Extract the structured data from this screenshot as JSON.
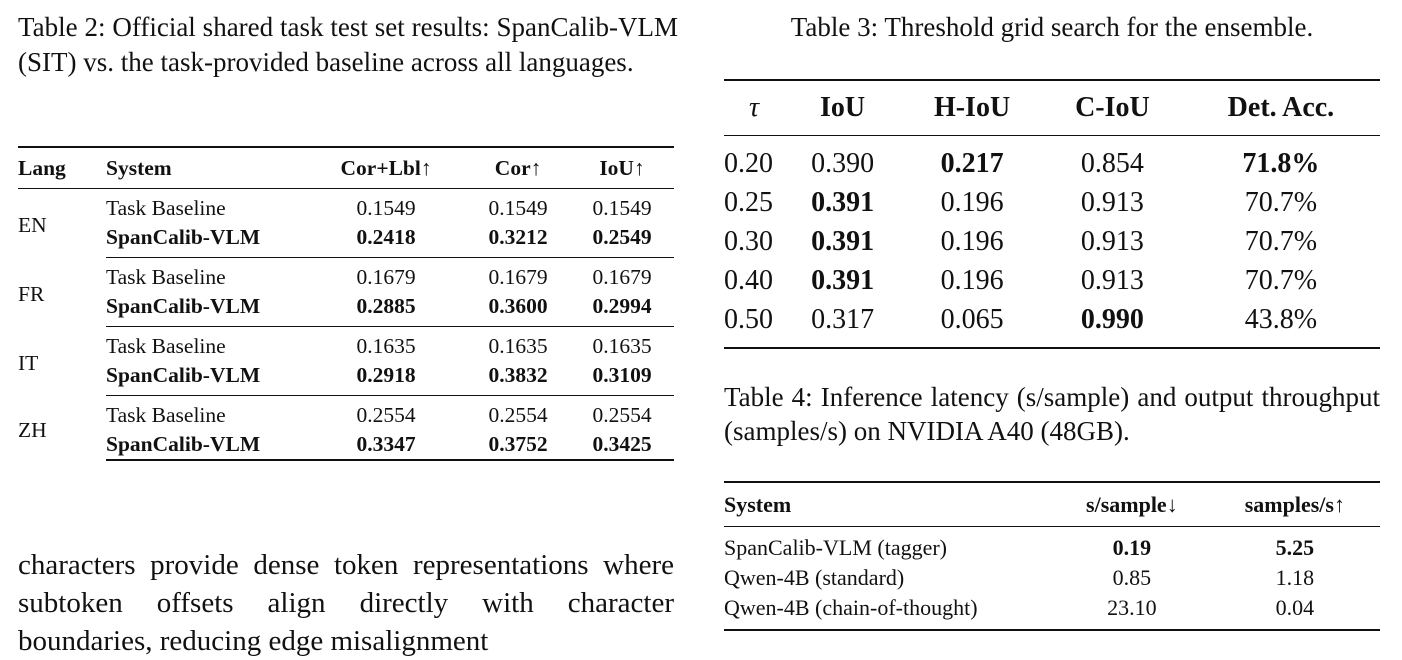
{
  "table2": {
    "caption": "Table 2: Official shared task test set results: SpanCalib-VLM (SIT) vs. the task-provided baseline across all languages.",
    "header": [
      "Lang",
      "System",
      "Cor+Lbl↑",
      "Cor↑",
      "IoU↑"
    ],
    "groups": [
      {
        "lang": "EN",
        "rows": [
          [
            "Task Baseline",
            "0.1549",
            "0.1549",
            "0.1549"
          ],
          [
            "SpanCalib-VLM",
            "0.2418",
            "0.3212",
            "0.2549"
          ]
        ]
      },
      {
        "lang": "FR",
        "rows": [
          [
            "Task Baseline",
            "0.1679",
            "0.1679",
            "0.1679"
          ],
          [
            "SpanCalib-VLM",
            "0.2885",
            "0.3600",
            "0.2994"
          ]
        ]
      },
      {
        "lang": "IT",
        "rows": [
          [
            "Task Baseline",
            "0.1635",
            "0.1635",
            "0.1635"
          ],
          [
            "SpanCalib-VLM",
            "0.2918",
            "0.3832",
            "0.3109"
          ]
        ]
      },
      {
        "lang": "ZH",
        "rows": [
          [
            "Task Baseline",
            "0.2554",
            "0.2554",
            "0.2554"
          ],
          [
            "SpanCalib-VLM",
            "0.3347",
            "0.3752",
            "0.3425"
          ]
        ]
      }
    ]
  },
  "table3": {
    "caption": "Table 3: Threshold grid search for the ensemble.",
    "header": [
      "τ",
      "IoU",
      "H-IoU",
      "C-IoU",
      "Det. Acc."
    ],
    "rows": [
      [
        "0.20",
        "0.390",
        "0.217",
        "0.854",
        "71.8%"
      ],
      [
        "0.25",
        "0.391",
        "0.196",
        "0.913",
        "70.7%"
      ],
      [
        "0.30",
        "0.391",
        "0.196",
        "0.913",
        "70.7%"
      ],
      [
        "0.40",
        "0.391",
        "0.196",
        "0.913",
        "70.7%"
      ],
      [
        "0.50",
        "0.317",
        "0.065",
        "0.990",
        "43.8%"
      ]
    ]
  },
  "table4": {
    "caption": "Table 4: Inference latency (s/sample) and output throughput (samples/s) on NVIDIA A40 (48GB).",
    "header": [
      "System",
      "s/sample↓",
      "samples/s↑"
    ],
    "rows": [
      [
        "SpanCalib-VLM (tagger)",
        "0.19",
        "5.25"
      ],
      [
        "Qwen-4B (standard)",
        "0.85",
        "1.18"
      ],
      [
        "Qwen-4B (chain-of-thought)",
        "23.10",
        "0.04"
      ]
    ]
  },
  "body": {
    "paragraph": "characters provide dense token representations where subtoken offsets align directly with character boundaries, reducing edge misalignment"
  }
}
